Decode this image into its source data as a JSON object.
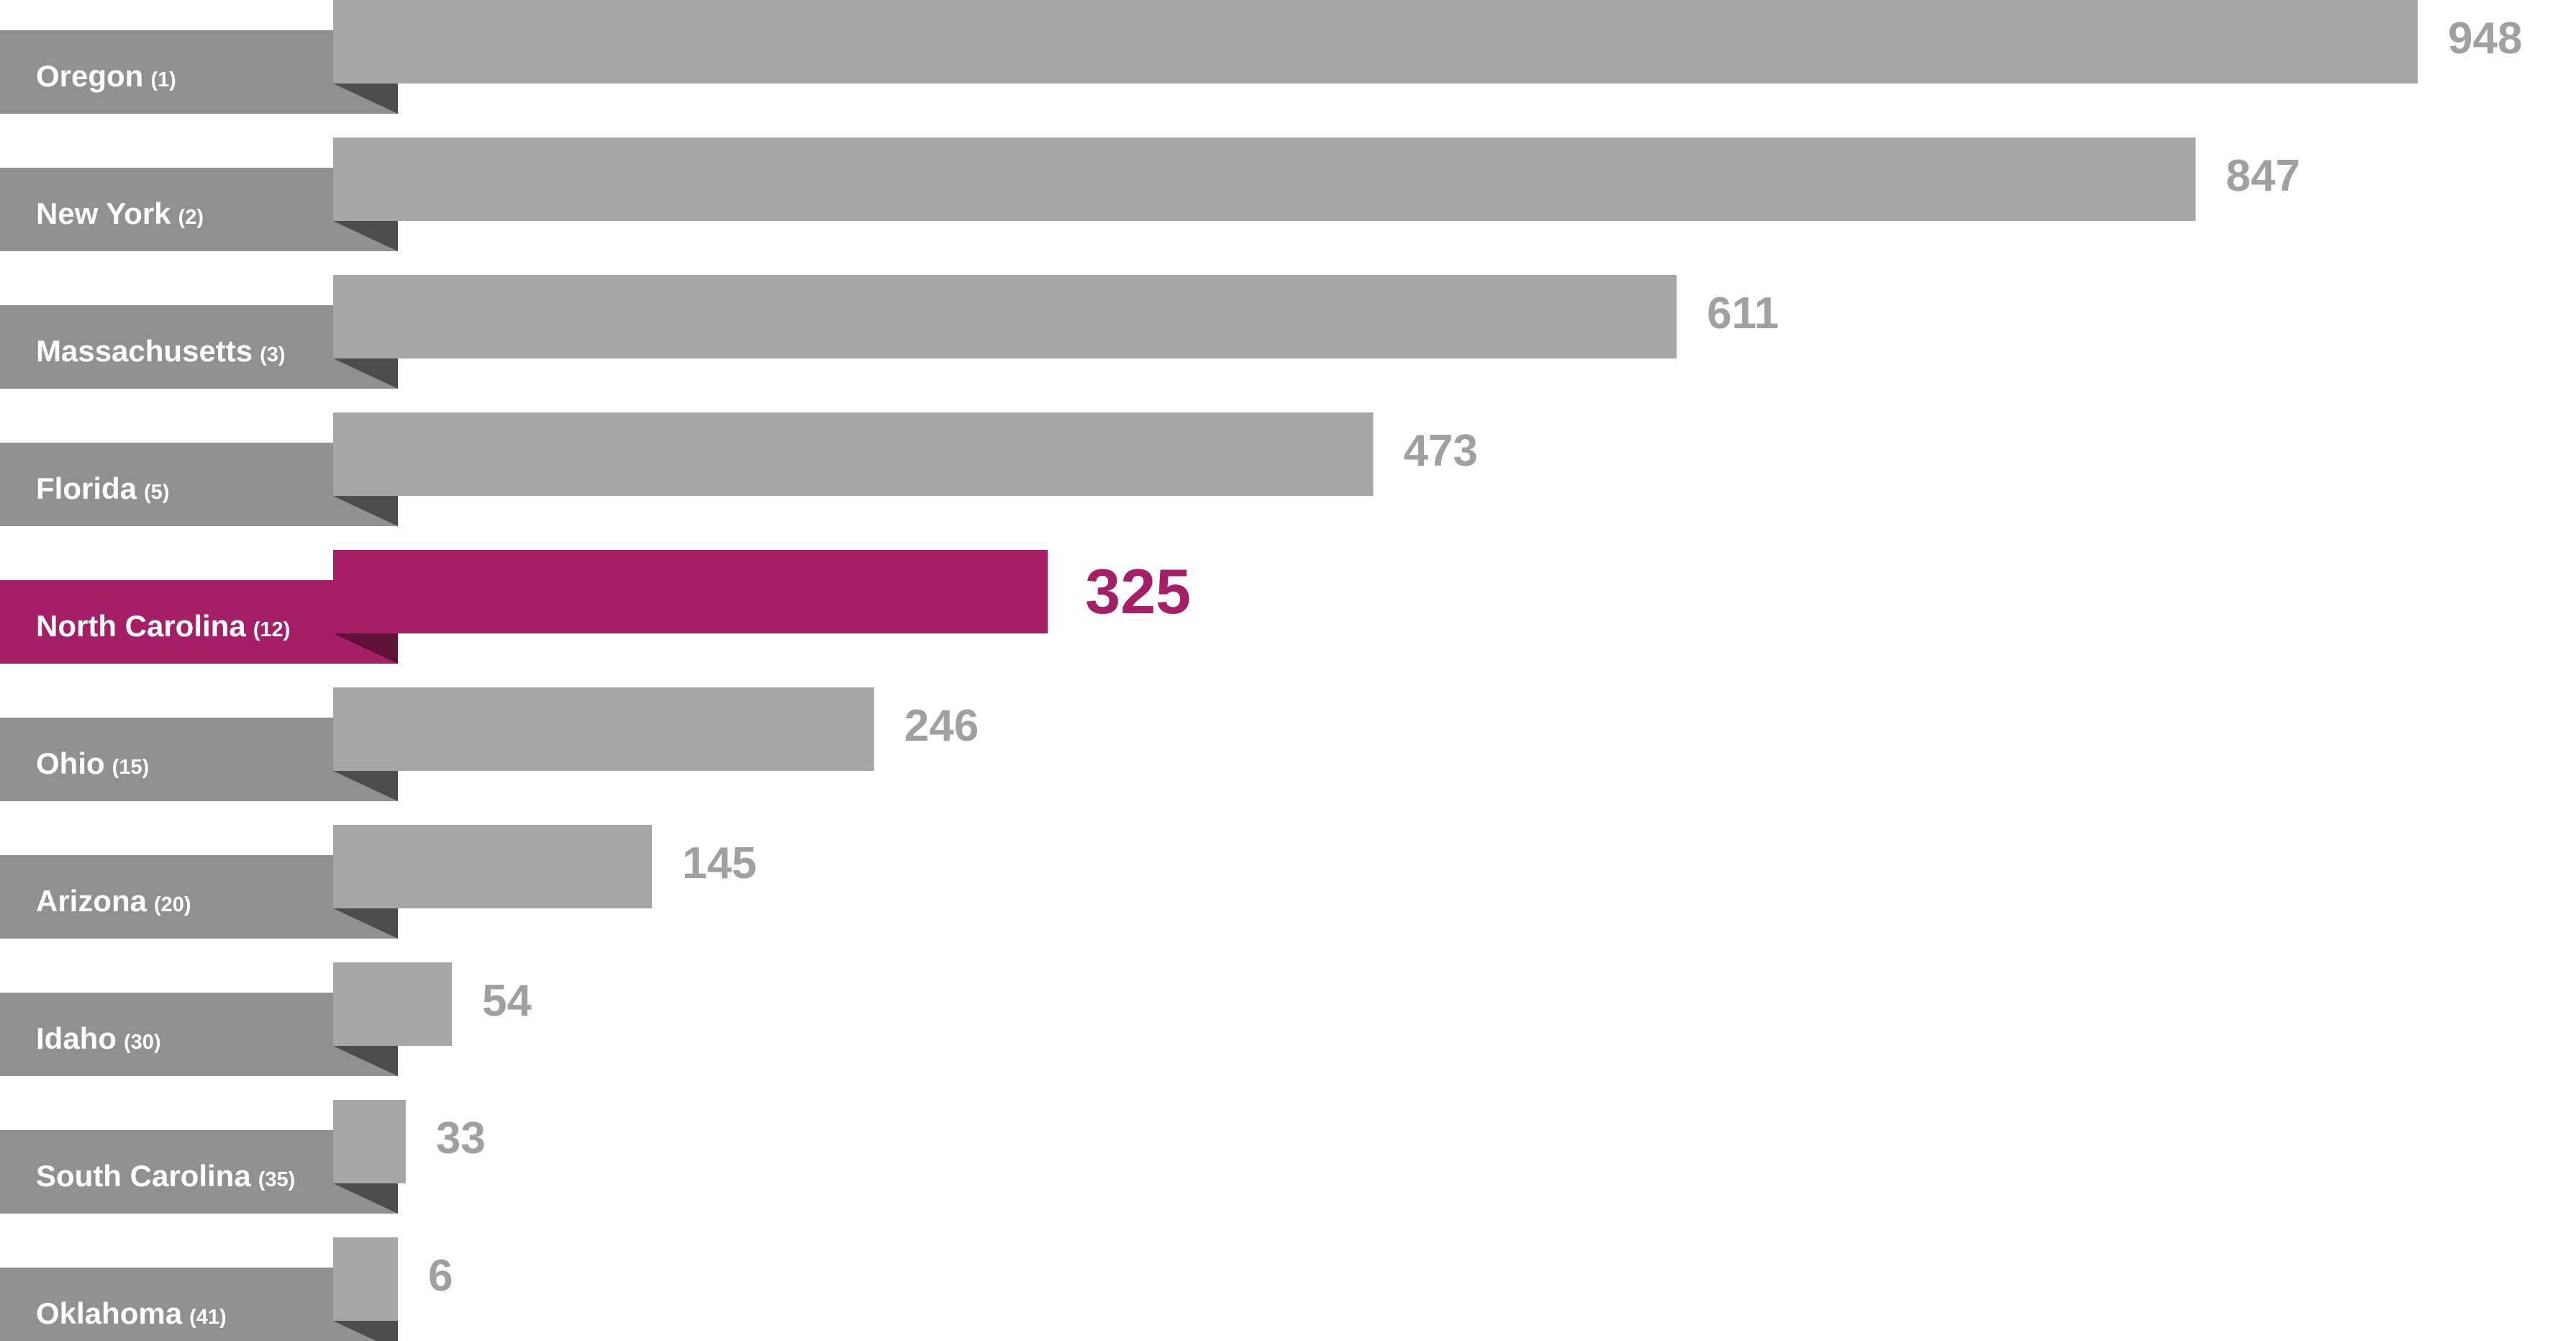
{
  "chart_data": {
    "type": "bar",
    "orientation": "horizontal",
    "title": "",
    "xlabel": "",
    "ylabel": "",
    "xlim": [
      0,
      948
    ],
    "grid": false,
    "legend": "none",
    "categories": [
      "Oregon",
      "New York",
      "Massachusetts",
      "Florida",
      "North Carolina",
      "Ohio",
      "Arizona",
      "Idaho",
      "South Carolina",
      "Oklahoma"
    ],
    "ranks": [
      "(1)",
      "(2)",
      "(3)",
      "(5)",
      "(12)",
      "(15)",
      "(20)",
      "(30)",
      "(35)",
      "(41)"
    ],
    "values": [
      948,
      847,
      611,
      473,
      325,
      246,
      145,
      54,
      33,
      6
    ],
    "value_labels": [
      "948",
      "847",
      "611",
      "473",
      "325",
      "246",
      "145",
      "54",
      "33",
      "6"
    ],
    "highlight": "North Carolina"
  },
  "colors": {
    "bar": "#a6a6a6",
    "label_tab": "#909090",
    "fold": "#4d4d4d",
    "value_text": "#a0a0a0",
    "highlight_bar": "#a51f66",
    "highlight_tab": "#a51f66",
    "highlight_fold": "#5e1238",
    "highlight_text": "#a51f66"
  }
}
